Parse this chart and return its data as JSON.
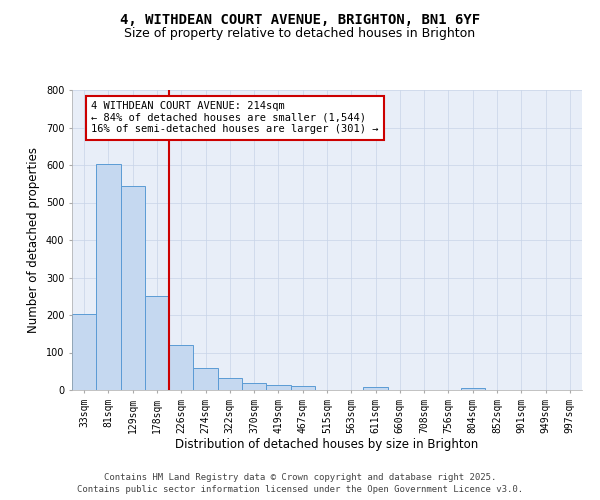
{
  "title_line1": "4, WITHDEAN COURT AVENUE, BRIGHTON, BN1 6YF",
  "title_line2": "Size of property relative to detached houses in Brighton",
  "xlabel": "Distribution of detached houses by size in Brighton",
  "ylabel": "Number of detached properties",
  "categories": [
    "33sqm",
    "81sqm",
    "129sqm",
    "178sqm",
    "226sqm",
    "274sqm",
    "322sqm",
    "370sqm",
    "419sqm",
    "467sqm",
    "515sqm",
    "563sqm",
    "611sqm",
    "660sqm",
    "708sqm",
    "756sqm",
    "804sqm",
    "852sqm",
    "901sqm",
    "949sqm",
    "997sqm"
  ],
  "values": [
    203,
    603,
    543,
    250,
    119,
    58,
    33,
    20,
    14,
    10,
    0,
    0,
    8,
    0,
    0,
    0,
    5,
    0,
    0,
    0,
    0
  ],
  "bar_color": "#c5d8f0",
  "bar_edge_color": "#5b9bd5",
  "vline_color": "#cc0000",
  "annotation_box_text": "4 WITHDEAN COURT AVENUE: 214sqm\n← 84% of detached houses are smaller (1,544)\n16% of semi-detached houses are larger (301) →",
  "ylim": [
    0,
    800
  ],
  "yticks": [
    0,
    100,
    200,
    300,
    400,
    500,
    600,
    700,
    800
  ],
  "grid_color": "#c8d4e8",
  "bg_color": "#e8eef8",
  "footer_line1": "Contains HM Land Registry data © Crown copyright and database right 2025.",
  "footer_line2": "Contains public sector information licensed under the Open Government Licence v3.0.",
  "title_fontsize": 10,
  "subtitle_fontsize": 9,
  "axis_label_fontsize": 8.5,
  "tick_fontsize": 7,
  "annotation_fontsize": 7.5,
  "footer_fontsize": 6.5
}
